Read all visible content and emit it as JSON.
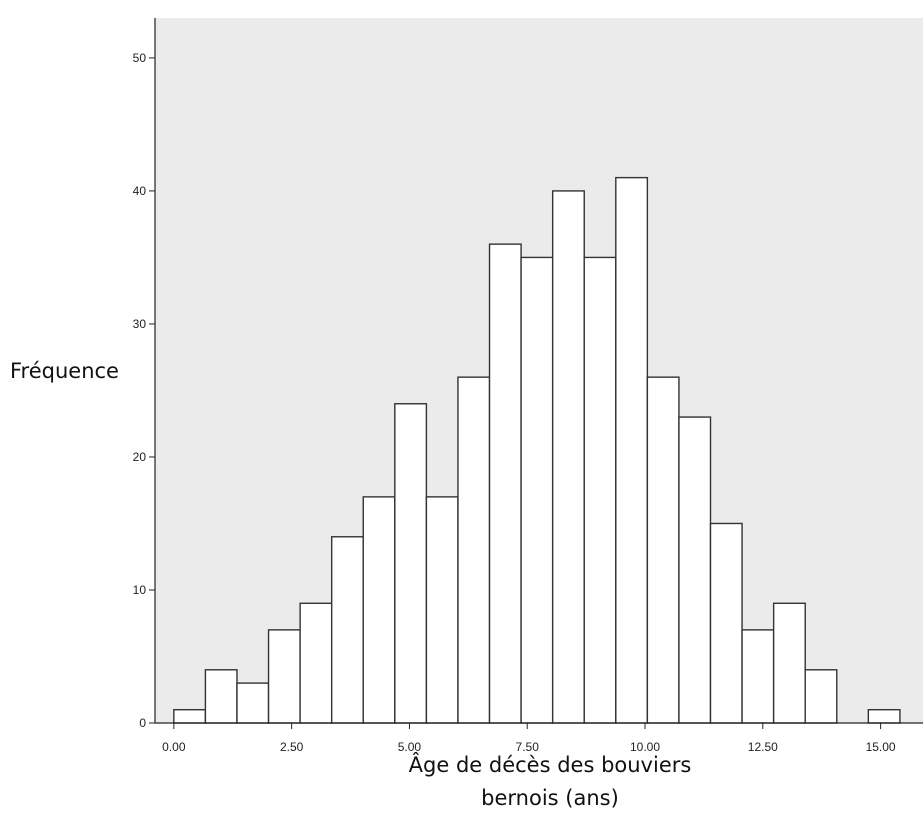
{
  "chart_data": {
    "type": "bar",
    "title": "",
    "ylabel": "Fréquence",
    "xlabel_line1": "Âge de décès des bouviers",
    "xlabel_line2": "bernois (ans)",
    "xlim": [
      -0.4,
      15.9
    ],
    "ylim": [
      0,
      53
    ],
    "bin_width": 0.67,
    "bin_start": 0.0,
    "values": [
      1,
      4,
      3,
      7,
      9,
      14,
      17,
      24,
      17,
      26,
      36,
      35,
      40,
      35,
      41,
      26,
      23,
      15,
      7,
      9,
      4,
      0,
      1
    ],
    "x_ticks": [
      0.0,
      2.5,
      5.0,
      7.5,
      10.0,
      12.5,
      15.0
    ],
    "x_tick_labels": [
      "0.00",
      "2.50",
      "5.00",
      "7.50",
      "10.00",
      "12.50",
      "15.00"
    ],
    "y_ticks": [
      0,
      10,
      20,
      30,
      40,
      50
    ],
    "y_tick_labels": [
      "0",
      "10",
      "20",
      "30",
      "40",
      "50"
    ],
    "grid": false,
    "legend": "none",
    "colors": {
      "bar_fill": "#ffffff",
      "bar_stroke": "#333333",
      "plot_background": "#ebebeb"
    }
  }
}
